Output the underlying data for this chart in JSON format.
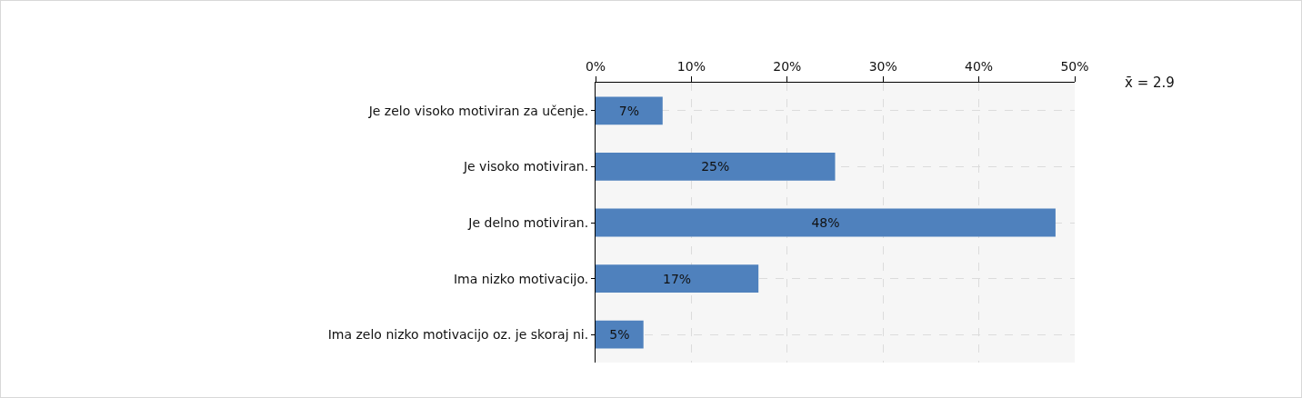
{
  "chart_data": {
    "type": "bar",
    "orientation": "horizontal",
    "categories": [
      "Je zelo visoko motiviran za učenje.",
      "Je visoko motiviran.",
      "Je delno motiviran.",
      "Ima nizko motivacijo.",
      "Ima zelo nizko motivacijo oz. je skoraj ni."
    ],
    "values": [
      7,
      25,
      48,
      17,
      5
    ],
    "value_labels": [
      "7%",
      "25%",
      "48%",
      "17%",
      "5%"
    ],
    "color": "#4f81bd",
    "xlim": [
      0,
      50
    ],
    "xticks": [
      {
        "value": 0,
        "label": "0%"
      },
      {
        "value": 10,
        "label": "10%"
      },
      {
        "value": 20,
        "label": "20%"
      },
      {
        "value": 30,
        "label": "30%"
      },
      {
        "value": 40,
        "label": "40%"
      },
      {
        "value": 50,
        "label": "50%"
      }
    ],
    "grid": true,
    "annotations": [
      "x̄ = 2.9"
    ]
  }
}
